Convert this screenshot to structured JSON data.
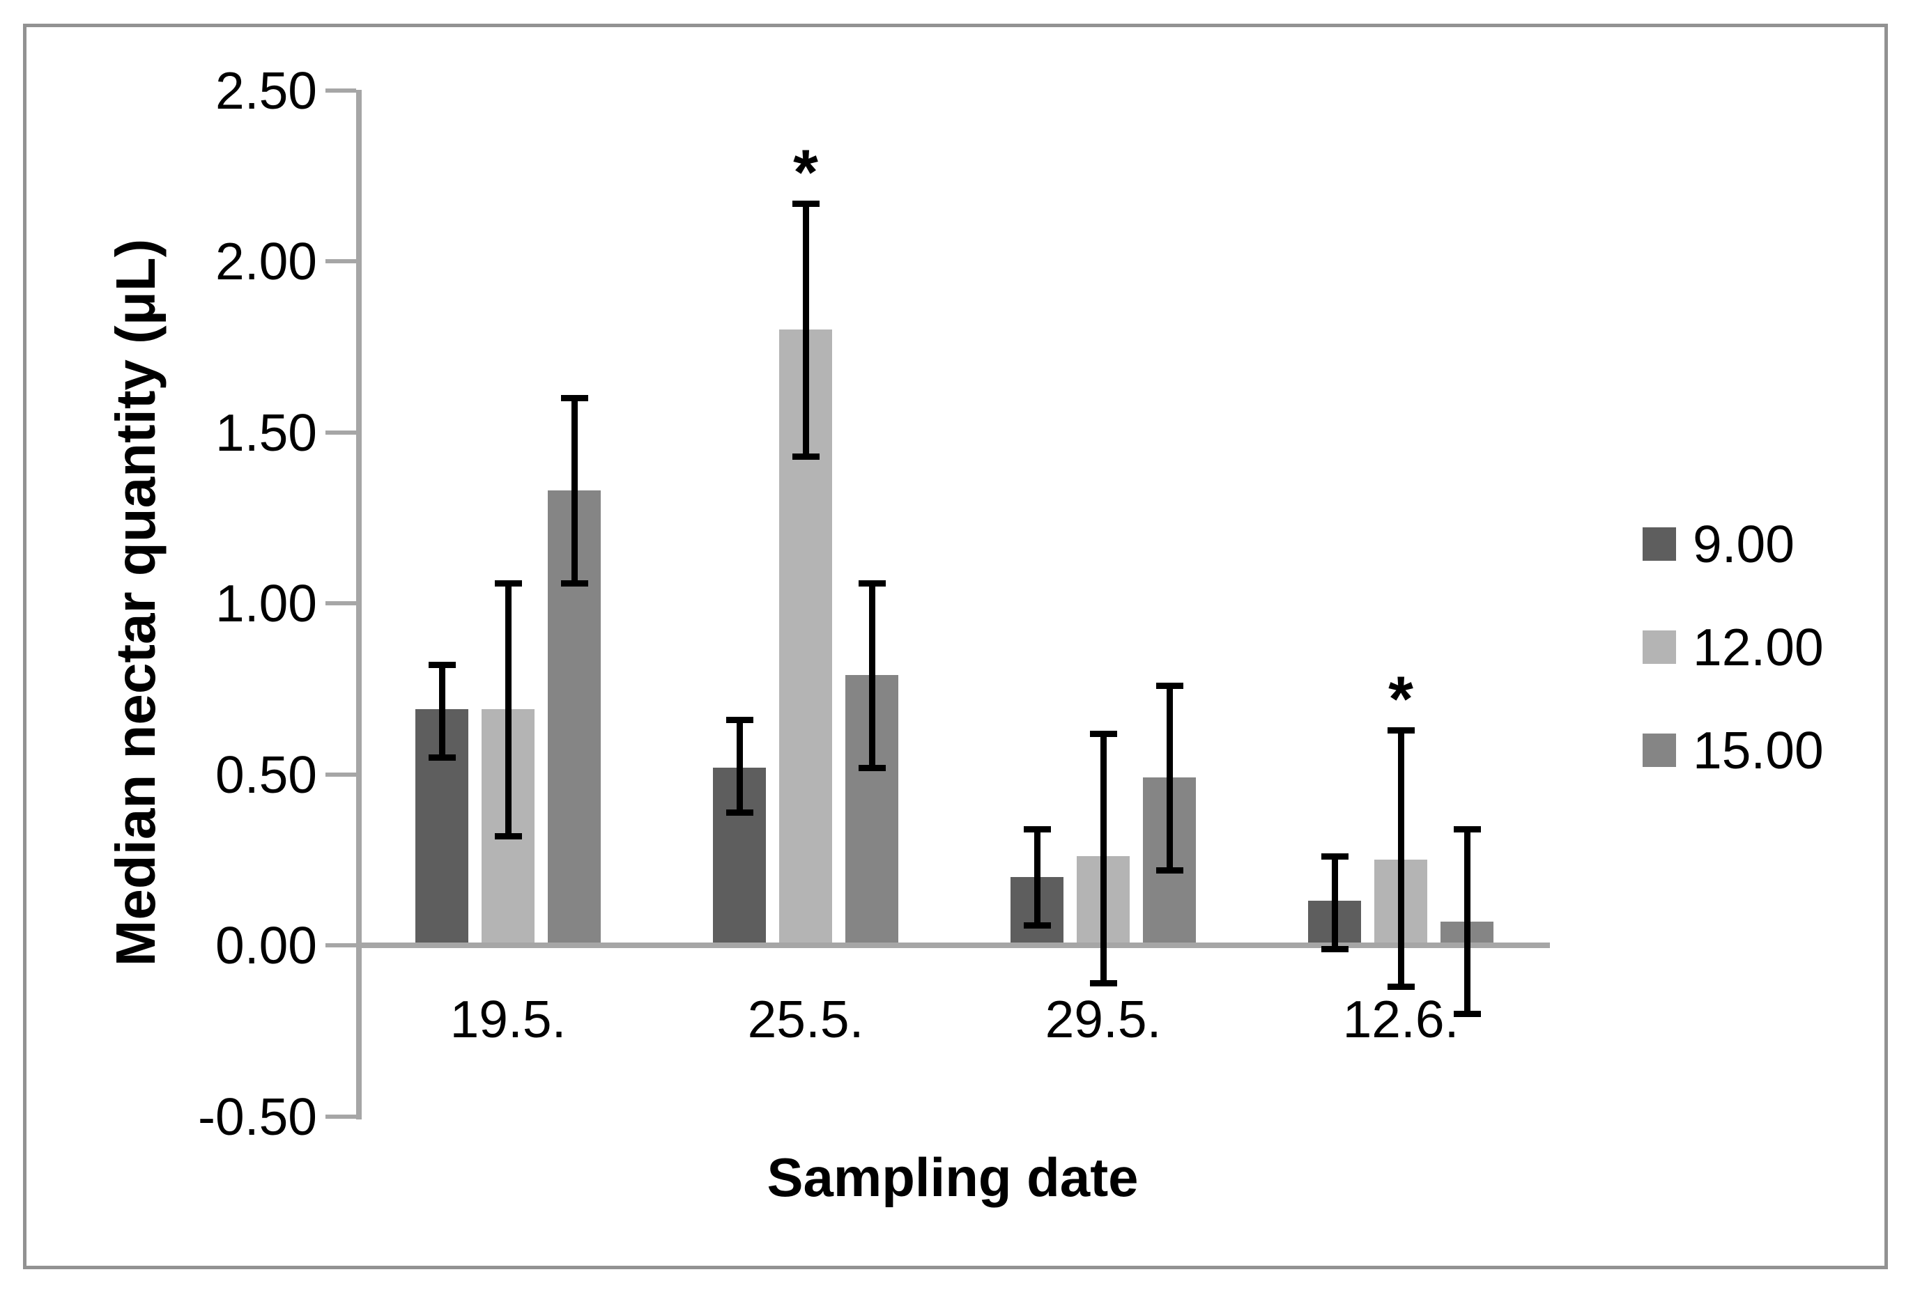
{
  "figure": {
    "y_axis_title": "Median nectar quantity (μL)",
    "x_axis_title": "Sampling date"
  },
  "chart_data": {
    "type": "bar",
    "title": "",
    "xlabel": "Sampling date",
    "ylabel": "Median nectar quantity (μL)",
    "categories": [
      "19.5.",
      "25.5.",
      "29.5.",
      "12.6."
    ],
    "y_ticks": [
      "2.50",
      "2.00",
      "1.50",
      "1.00",
      "0.50",
      "0.00",
      "-0.50"
    ],
    "ylim": [
      -0.5,
      2.5
    ],
    "grid": false,
    "legend_position": "right",
    "series": [
      {
        "name": "9.00",
        "color": "#5e5e5e",
        "values": [
          0.69,
          0.52,
          0.2,
          0.13
        ],
        "err_low": [
          0.55,
          0.39,
          0.06,
          -0.01
        ],
        "err_high": [
          0.82,
          0.66,
          0.34,
          0.26
        ]
      },
      {
        "name": "12.00",
        "color": "#b4b4b4",
        "values": [
          0.69,
          1.8,
          0.26,
          0.25
        ],
        "err_low": [
          0.32,
          1.43,
          -0.11,
          -0.12
        ],
        "err_high": [
          1.06,
          2.17,
          0.62,
          0.63
        ]
      },
      {
        "name": "15.00",
        "color": "#858585",
        "values": [
          1.33,
          0.79,
          0.49,
          0.07
        ],
        "err_low": [
          1.06,
          0.52,
          0.22,
          -0.2
        ],
        "err_high": [
          1.6,
          1.06,
          0.76,
          0.34
        ]
      }
    ],
    "annotations": [
      {
        "symbol": "*",
        "category": "25.5.",
        "series": "12.00"
      },
      {
        "symbol": "*",
        "category": "12.6.",
        "series": "12.00"
      }
    ]
  },
  "colors": {
    "axis": "#a6a6a6",
    "frame": "#929292",
    "text": "#000000"
  }
}
